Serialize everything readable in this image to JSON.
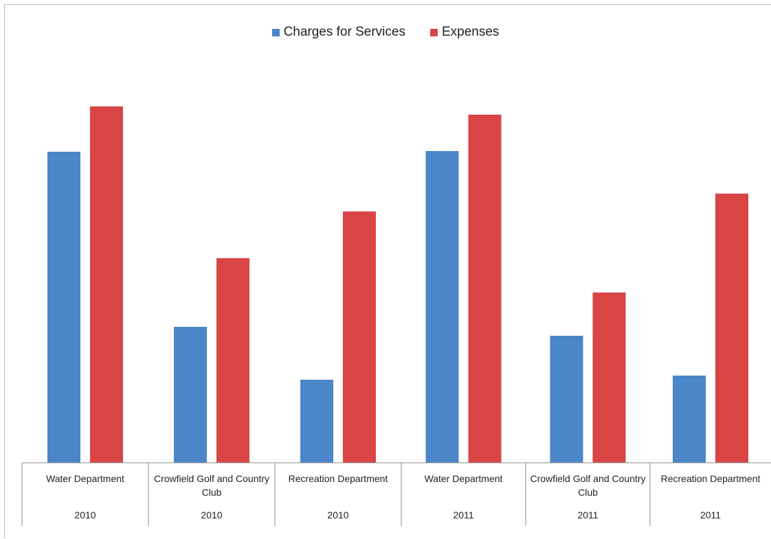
{
  "chart_data": {
    "type": "bar",
    "categories": [
      {
        "name": "Water Department",
        "year": "2010"
      },
      {
        "name": "Crowfield Golf and Country Club",
        "year": "2010"
      },
      {
        "name": "Recreation Department",
        "year": "2010"
      },
      {
        "name": "Water Department",
        "year": "2011"
      },
      {
        "name": "Crowfield Golf and Country Club",
        "year": "2011"
      },
      {
        "name": "Recreation Department",
        "year": "2011"
      }
    ],
    "series": [
      {
        "name": "Charges for Services",
        "color": "#4a86c8",
        "values": [
          453,
          198,
          121,
          454,
          185,
          127
        ]
      },
      {
        "name": "Expenses",
        "color": "#d94545",
        "values": [
          519,
          298,
          366,
          507,
          248,
          392
        ]
      }
    ],
    "ylim": [
      0,
      600
    ],
    "grid": false,
    "legend_position": "top"
  }
}
